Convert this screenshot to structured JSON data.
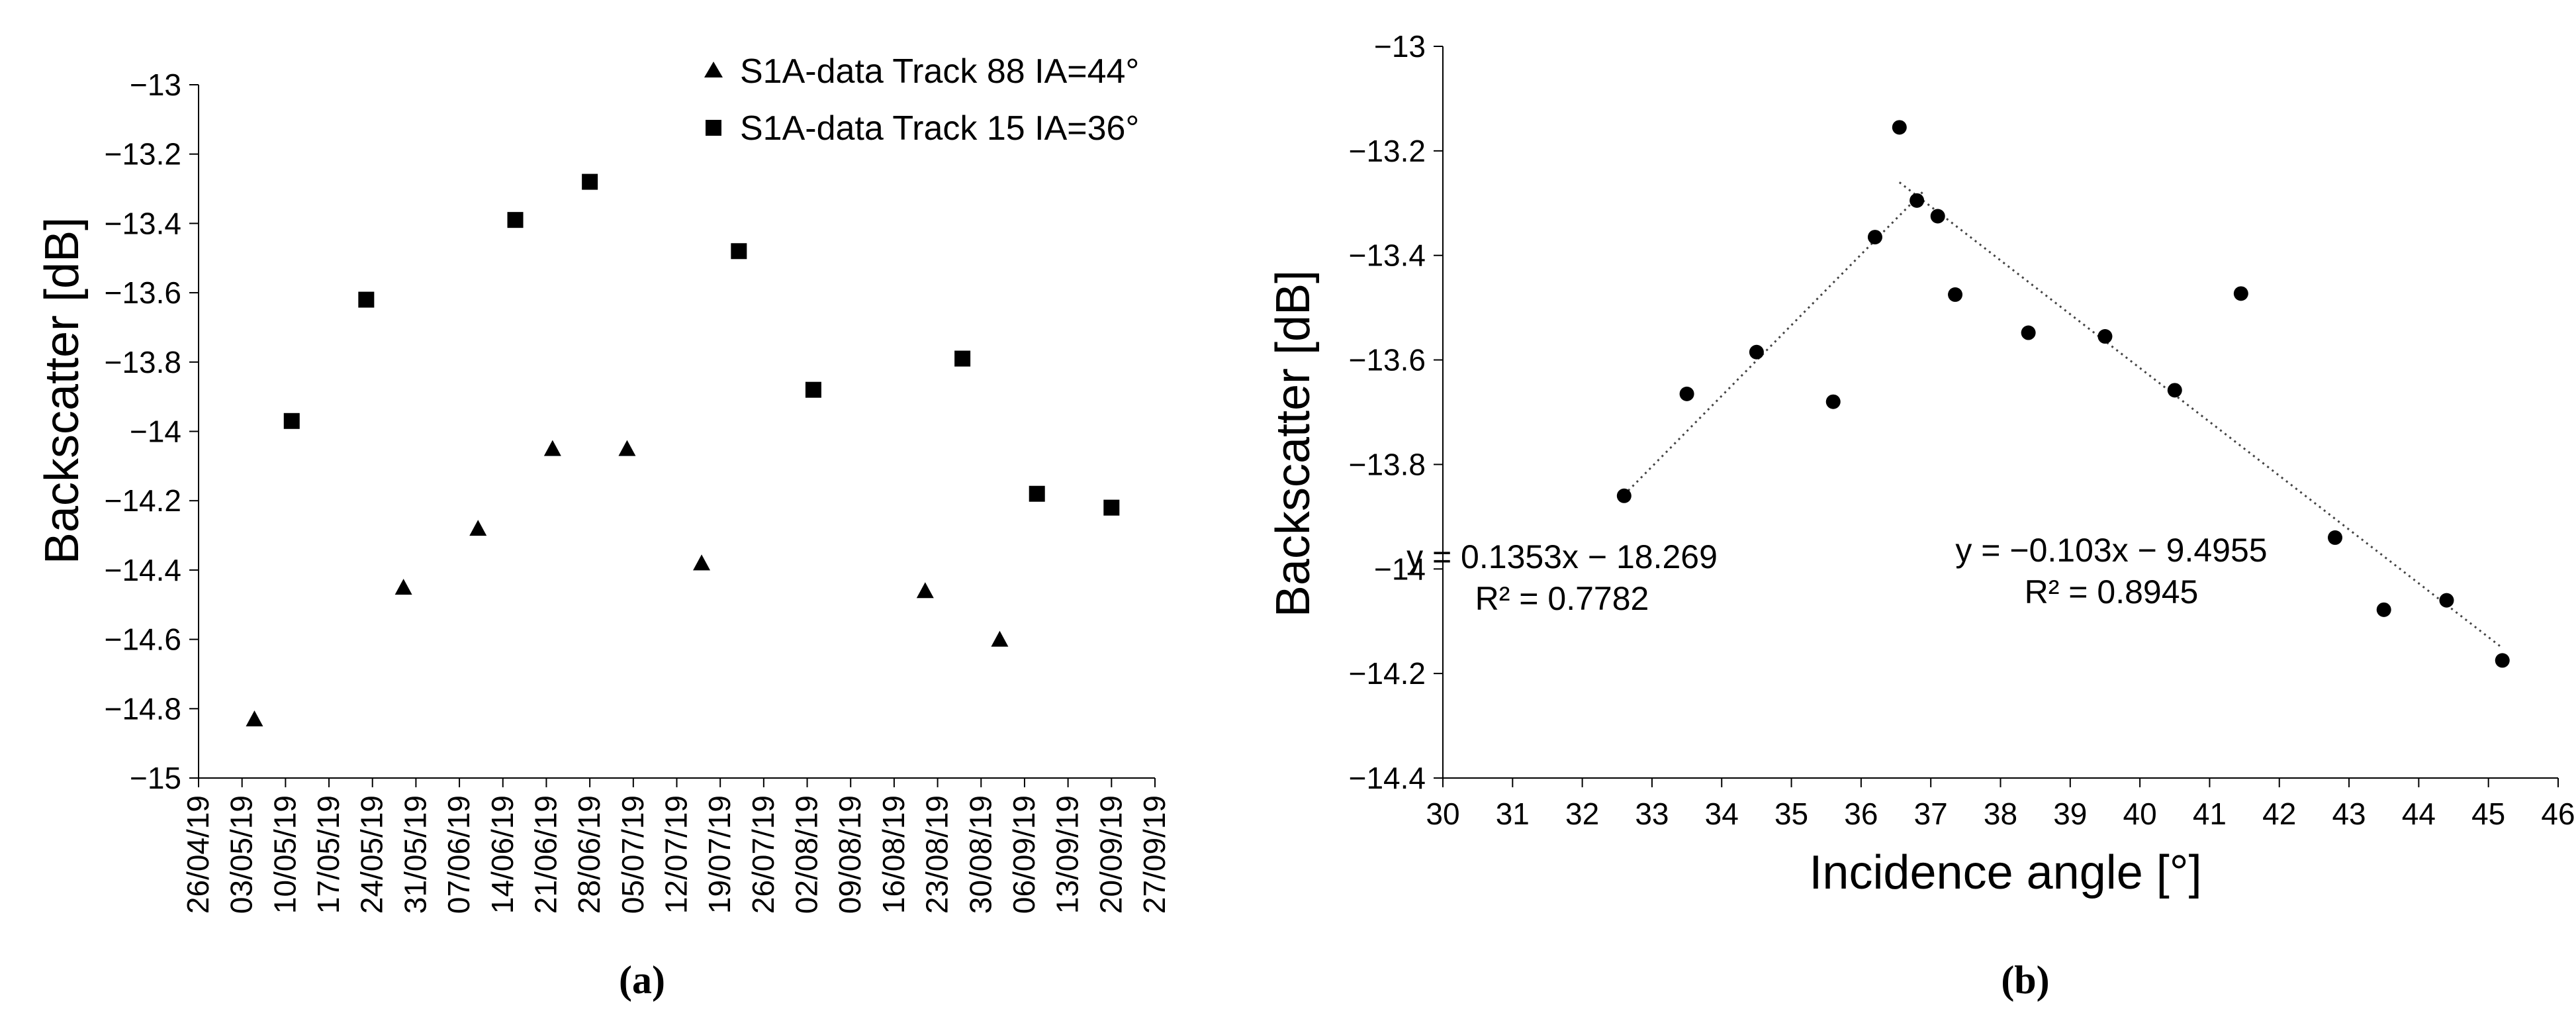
{
  "chart_data": [
    {
      "type": "scatter",
      "panel_label": "(a)",
      "ylabel": "Backscatter [dB]",
      "xlabel": "",
      "x_axis": "date",
      "xlim": [
        "26/04/19",
        "27/09/19"
      ],
      "x_ticks": [
        "26/04/19",
        "03/05/19",
        "10/05/19",
        "17/05/19",
        "24/05/19",
        "31/05/19",
        "07/06/19",
        "14/06/19",
        "21/06/19",
        "28/06/19",
        "05/07/19",
        "12/07/19",
        "19/07/19",
        "26/07/19",
        "02/08/19",
        "09/08/19",
        "16/08/19",
        "23/08/19",
        "30/08/19",
        "06/09/19",
        "13/09/19",
        "20/09/19",
        "27/09/19"
      ],
      "ylim": [
        -15,
        -13
      ],
      "y_ticks": [
        "-13",
        "-13.2",
        "-13.4",
        "-13.6",
        "-13.8",
        "-14",
        "-14.2",
        "-14.4",
        "-14.6",
        "-14.8",
        "-15"
      ],
      "grid": false,
      "legend_position": "top-right",
      "series": [
        {
          "name": "S1A-data Track 88 IA=44°",
          "marker": "triangle",
          "points": [
            {
              "x": "05/05/19",
              "y": -14.83
            },
            {
              "x": "29/05/19",
              "y": -14.45
            },
            {
              "x": "10/06/19",
              "y": -14.28
            },
            {
              "x": "22/06/19",
              "y": -14.05
            },
            {
              "x": "04/07/19",
              "y": -14.05
            },
            {
              "x": "16/07/19",
              "y": -14.38
            },
            {
              "x": "21/08/19",
              "y": -14.46
            },
            {
              "x": "02/09/19",
              "y": -14.6
            }
          ]
        },
        {
          "name": "S1A-data Track 15 IA=36°",
          "marker": "square",
          "points": [
            {
              "x": "11/05/19",
              "y": -13.97
            },
            {
              "x": "23/05/19",
              "y": -13.62
            },
            {
              "x": "16/06/19",
              "y": -13.39
            },
            {
              "x": "28/06/19",
              "y": -13.28
            },
            {
              "x": "22/07/19",
              "y": -13.48
            },
            {
              "x": "03/08/19",
              "y": -13.88
            },
            {
              "x": "27/08/19",
              "y": -13.79
            },
            {
              "x": "08/09/19",
              "y": -14.18
            },
            {
              "x": "20/09/19",
              "y": -14.22
            }
          ]
        }
      ]
    },
    {
      "type": "scatter",
      "panel_label": "(b)",
      "xlabel": "Incidence angle [°]",
      "ylabel": "Backscatter [dB]",
      "xlim": [
        30,
        46
      ],
      "x_ticks": [
        "30",
        "31",
        "32",
        "33",
        "34",
        "35",
        "36",
        "37",
        "38",
        "39",
        "40",
        "41",
        "42",
        "43",
        "44",
        "45",
        "46"
      ],
      "ylim": [
        -14.4,
        -13
      ],
      "y_ticks": [
        "-13",
        "-13.2",
        "-13.4",
        "-13.6",
        "-13.8",
        "-14",
        "-14.2",
        "-14.4"
      ],
      "grid": false,
      "series": [
        {
          "marker": "circle",
          "points": [
            {
              "x": 32.6,
              "y": -13.86
            },
            {
              "x": 33.5,
              "y": -13.665
            },
            {
              "x": 34.5,
              "y": -13.585
            },
            {
              "x": 35.6,
              "y": -13.68
            },
            {
              "x": 36.2,
              "y": -13.365
            },
            {
              "x": 36.55,
              "y": -13.155
            },
            {
              "x": 36.8,
              "y": -13.295
            },
            {
              "x": 37.1,
              "y": -13.325
            },
            {
              "x": 37.35,
              "y": -13.475
            },
            {
              "x": 38.4,
              "y": -13.548
            },
            {
              "x": 39.5,
              "y": -13.555
            },
            {
              "x": 40.5,
              "y": -13.658
            },
            {
              "x": 41.45,
              "y": -13.473
            },
            {
              "x": 42.8,
              "y": -13.94
            },
            {
              "x": 43.5,
              "y": -14.078
            },
            {
              "x": 44.4,
              "y": -14.06
            },
            {
              "x": 45.2,
              "y": -14.175
            }
          ]
        }
      ],
      "trendlines": [
        {
          "slope": 0.1353,
          "intercept": -18.269,
          "x_range": [
            32.6,
            36.9
          ],
          "equation": "y = 0.1353x − 18.269",
          "r2": "R² = 0.7782"
        },
        {
          "slope": -0.103,
          "intercept": -9.4955,
          "x_range": [
            36.55,
            45.2
          ],
          "equation": "y = −0.103x − 9.4955",
          "r2": "R² = 0.8945"
        }
      ]
    }
  ],
  "colors": {
    "ink": "#000000",
    "trendline": "#444444"
  }
}
